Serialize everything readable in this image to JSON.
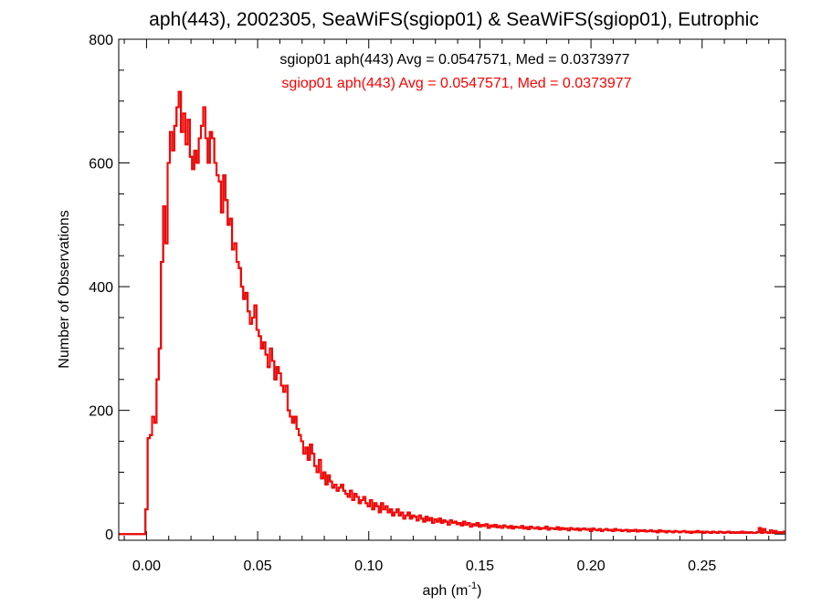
{
  "chart_data": {
    "type": "histogram",
    "title": "aph(443), 2002305, SeaWiFS(sgiop01) & SeaWiFS(sgiop01), Eutrophic",
    "xlabel": "aph (m",
    "xlabel_sup": "-1",
    "xlabel_tail": ")",
    "ylabel": "Number of Observations",
    "xlim": [
      -0.0125,
      0.2875
    ],
    "ylim": [
      -10,
      800
    ],
    "x_ticks": [
      0.0,
      0.05,
      0.1,
      0.15,
      0.2,
      0.25
    ],
    "x_tick_labels": [
      "0.00",
      "0.05",
      "0.10",
      "0.15",
      "0.20",
      "0.25"
    ],
    "y_ticks": [
      0,
      200,
      400,
      600,
      800
    ],
    "y_tick_labels": [
      "0",
      "200",
      "400",
      "600",
      "800"
    ],
    "bin_width": 0.001,
    "bin_start": -0.0125,
    "legend_position": "top-center",
    "series": [
      {
        "name": "sgiop01 aph(443) Avg = 0.0547571, Med = 0.0373977",
        "color": "#000000",
        "stats": {
          "avg": 0.0547571,
          "med": 0.0373977
        }
      },
      {
        "name": "sgiop01 aph(443) Avg = 0.0547571, Med = 0.0373977",
        "color": "#ff0000",
        "stats": {
          "avg": 0.0547571,
          "med": 0.0373977
        }
      }
    ],
    "counts": [
      0,
      0,
      0,
      0,
      0,
      0,
      0,
      0,
      0,
      0,
      0,
      0,
      40,
      155,
      160,
      190,
      180,
      250,
      300,
      440,
      530,
      470,
      600,
      650,
      620,
      660,
      690,
      715,
      650,
      680,
      630,
      670,
      610,
      590,
      620,
      600,
      640,
      660,
      690,
      640,
      600,
      650,
      640,
      600,
      580,
      570,
      520,
      580,
      540,
      500,
      510,
      460,
      470,
      440,
      430,
      400,
      380,
      390,
      360,
      340,
      350,
      370,
      330,
      320,
      300,
      310,
      290,
      270,
      300,
      280,
      250,
      270,
      260,
      240,
      230,
      240,
      200,
      190,
      180,
      190,
      170,
      160,
      150,
      130,
      140,
      120,
      145,
      130,
      110,
      100,
      120,
      90,
      100,
      80,
      95,
      85,
      75,
      80,
      70,
      75,
      80,
      70,
      65,
      60,
      70,
      55,
      65,
      60,
      50,
      55,
      60,
      50,
      45,
      55,
      40,
      50,
      45,
      35,
      50,
      40,
      45,
      35,
      40,
      30,
      35,
      40,
      30,
      35,
      25,
      30,
      35,
      25,
      30,
      28,
      22,
      30,
      25,
      20,
      28,
      22,
      26,
      18,
      24,
      20,
      25,
      18,
      22,
      20,
      15,
      22,
      18,
      20,
      16,
      18,
      14,
      20,
      15,
      18,
      12,
      16,
      14,
      18,
      12,
      15,
      13,
      16,
      10,
      14,
      12,
      15,
      11,
      13,
      10,
      14,
      12,
      10,
      13,
      9,
      12,
      11,
      10,
      13,
      9,
      11,
      8,
      12,
      10,
      9,
      11,
      8,
      10,
      9,
      12,
      7,
      10,
      9,
      8,
      11,
      7,
      10,
      8,
      9,
      6,
      10,
      8,
      7,
      9,
      6,
      8,
      9,
      7,
      8,
      5,
      9,
      7,
      6,
      8,
      5,
      7,
      8,
      6,
      7,
      5,
      8,
      6,
      7,
      5,
      6,
      7,
      4,
      6,
      5,
      7,
      4,
      6,
      5,
      6,
      4,
      5,
      6,
      4,
      5,
      3,
      6,
      4,
      5,
      3,
      5,
      4,
      3,
      5,
      4,
      3,
      4,
      5,
      3,
      4,
      2,
      4,
      3,
      5,
      3,
      4,
      2,
      4,
      3,
      2,
      4,
      3,
      2,
      4,
      3,
      2,
      3,
      4,
      2,
      3,
      2,
      3,
      2,
      4,
      2,
      3,
      2,
      3,
      2,
      2,
      3,
      10,
      2,
      8,
      3,
      2,
      6,
      2,
      5,
      2,
      3,
      2,
      4,
      2,
      3,
      8,
      2
    ]
  }
}
